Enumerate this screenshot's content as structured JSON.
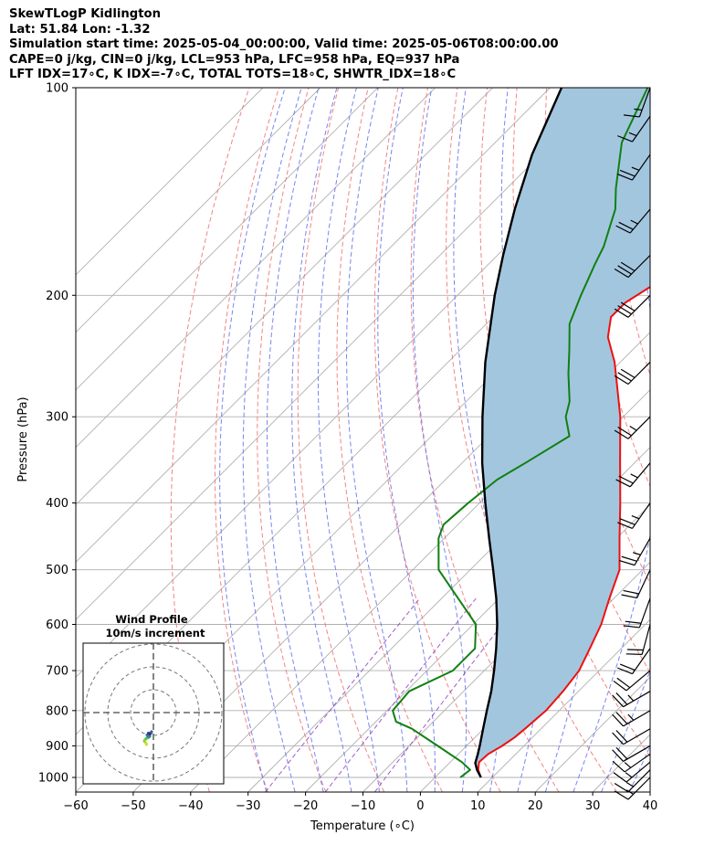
{
  "header": {
    "line1": "SkewTLogP Kidlington",
    "line2": "Lat: 51.84   Lon: -1.32",
    "line3": "Simulation start time: 2025-05-04_00:00:00, Valid time: 2025-05-06T08:00:00.00",
    "line4": "CAPE=0 j/kg, CIN=0 j/kg, LCL=953 hPa, LFC=958 hPa, EQ=937 hPa",
    "line5": "LFT IDX=17∘C, K IDX=-7∘C, TOTAL TOTS=18∘C, SHWTR_IDX=18∘C"
  },
  "colors": {
    "temperature": "#ee1111",
    "dewpoint": "#108010",
    "parcel": "#000000",
    "shade": "#a3c6df",
    "dry_adiabat": "#f07070",
    "moist_adiabat": "#6070f0",
    "mixing_ratio": "#9040c0",
    "isotherm": "#b0b0b0",
    "grid": "#b0b0b0"
  },
  "chart_data": [
    {
      "type": "line",
      "subtype": "skewt-logp",
      "xlabel": "Temperature (∘C)",
      "ylabel": "Pressure (hPa)",
      "xlim": [
        -60,
        40
      ],
      "ylim": [
        1050,
        100
      ],
      "x_ticks": [
        -60,
        -50,
        -40,
        -30,
        -20,
        -10,
        0,
        10,
        20,
        30,
        40
      ],
      "x_tick_labels": [
        "−60",
        "−50",
        "−40",
        "−30",
        "−20",
        "−10",
        "0",
        "10",
        "20",
        "30",
        "40"
      ],
      "y_ticks": [
        1000,
        900,
        800,
        700,
        600,
        500,
        400,
        300,
        200,
        100
      ],
      "y_tick_labels": [
        "1000",
        "900",
        "800",
        "700",
        "600",
        "500",
        "400",
        "300",
        "200",
        "100"
      ],
      "grid": true,
      "series": [
        {
          "name": "Temperature",
          "points": [
            [
              1000,
              8.0
            ],
            [
              975,
              6.2
            ],
            [
              950,
              5.0
            ],
            [
              925,
              5.2
            ],
            [
              900,
              6.2
            ],
            [
              875,
              6.9
            ],
            [
              850,
              7.2
            ],
            [
              800,
              7.7
            ],
            [
              750,
              7.3
            ],
            [
              700,
              6.5
            ],
            [
              650,
              4.5
            ],
            [
              600,
              2.3
            ],
            [
              550,
              -0.8
            ],
            [
              500,
              -4.0
            ],
            [
              450,
              -9.5
            ],
            [
              400,
              -15.5
            ],
            [
              350,
              -22.5
            ],
            [
              300,
              -30.5
            ],
            [
              275,
              -35.5
            ],
            [
              250,
              -41.0
            ],
            [
              230,
              -46.5
            ],
            [
              215,
              -49.5
            ],
            [
              205,
              -49.5
            ],
            [
              195,
              -48.0
            ],
            [
              185,
              -45.5
            ],
            [
              170,
              -43.0
            ],
            [
              160,
              -42.5
            ],
            [
              150,
              -44.5
            ],
            [
              140,
              -47.5
            ],
            [
              130,
              -51.0
            ],
            [
              120,
              -55.0
            ],
            [
              110,
              -59.5
            ],
            [
              100,
              -63.0
            ]
          ]
        },
        {
          "name": "Dewpoint",
          "points": [
            [
              1000,
              4.4
            ],
            [
              975,
              4.8
            ],
            [
              950,
              2.0
            ],
            [
              900,
              -5.0
            ],
            [
              850,
              -12.5
            ],
            [
              830,
              -16.5
            ],
            [
              800,
              -19.0
            ],
            [
              750,
              -19.5
            ],
            [
              700,
              -15.5
            ],
            [
              650,
              -15.5
            ],
            [
              600,
              -19.5
            ],
            [
              500,
              -35.5
            ],
            [
              450,
              -41.0
            ],
            [
              430,
              -42.5
            ],
            [
              400,
              -42.0
            ],
            [
              370,
              -41.0
            ],
            [
              350,
              -39.0
            ],
            [
              320,
              -36.0
            ],
            [
              300,
              -40.0
            ],
            [
              285,
              -42.0
            ],
            [
              260,
              -47.0
            ],
            [
              240,
              -51.0
            ],
            [
              220,
              -55.5
            ],
            [
              200,
              -58.5
            ],
            [
              180,
              -61.5
            ],
            [
              170,
              -63.0
            ],
            [
              150,
              -67.5
            ],
            [
              140,
              -71.0
            ],
            [
              120,
              -78.0
            ],
            [
              100,
              -83.0
            ]
          ]
        },
        {
          "name": "Parcel",
          "points": [
            [
              1000,
              8.0
            ],
            [
              975,
              6.0
            ],
            [
              953,
              4.5
            ],
            [
              925,
              3.4
            ],
            [
              900,
              2.3
            ],
            [
              850,
              -0.1
            ],
            [
              800,
              -2.6
            ],
            [
              750,
              -5.2
            ],
            [
              700,
              -8.3
            ],
            [
              650,
              -11.8
            ],
            [
              600,
              -15.8
            ],
            [
              550,
              -20.5
            ],
            [
              500,
              -26.0
            ],
            [
              450,
              -32.2
            ],
            [
              400,
              -39.0
            ],
            [
              350,
              -46.5
            ],
            [
              300,
              -54.5
            ],
            [
              250,
              -63.5
            ],
            [
              200,
              -73.5
            ],
            [
              175,
              -79.0
            ],
            [
              150,
              -85.0
            ],
            [
              125,
              -91.5
            ],
            [
              100,
              -98.0
            ]
          ]
        }
      ],
      "wind_barbs": [
        {
          "p": 1000,
          "dir": 225,
          "spd": 15
        },
        {
          "p": 975,
          "dir": 225,
          "spd": 15
        },
        {
          "p": 950,
          "dir": 230,
          "spd": 15
        },
        {
          "p": 925,
          "dir": 235,
          "spd": 15
        },
        {
          "p": 900,
          "dir": 240,
          "spd": 20
        },
        {
          "p": 850,
          "dir": 240,
          "spd": 20
        },
        {
          "p": 800,
          "dir": 240,
          "spd": 25
        },
        {
          "p": 750,
          "dir": 240,
          "spd": 25
        },
        {
          "p": 700,
          "dir": 230,
          "spd": 20
        },
        {
          "p": 650,
          "dir": 215,
          "spd": 20
        },
        {
          "p": 600,
          "dir": 195,
          "spd": 20
        },
        {
          "p": 550,
          "dir": 200,
          "spd": 20
        },
        {
          "p": 500,
          "dir": 205,
          "spd": 20
        },
        {
          "p": 450,
          "dir": 210,
          "spd": 25
        },
        {
          "p": 400,
          "dir": 215,
          "spd": 25
        },
        {
          "p": 350,
          "dir": 220,
          "spd": 25
        },
        {
          "p": 300,
          "dir": 225,
          "spd": 25
        },
        {
          "p": 250,
          "dir": 225,
          "spd": 30
        },
        {
          "p": 200,
          "dir": 225,
          "spd": 30
        },
        {
          "p": 175,
          "dir": 225,
          "spd": 30
        },
        {
          "p": 150,
          "dir": 220,
          "spd": 25
        },
        {
          "p": 125,
          "dir": 215,
          "spd": 25
        },
        {
          "p": 110,
          "dir": 215,
          "spd": 15
        },
        {
          "p": 100,
          "dir": 200,
          "spd": 15
        }
      ]
    },
    {
      "type": "scatter",
      "subtype": "hodograph",
      "title": "Wind Profile",
      "subtitle": "10m/s increment",
      "rings_ms": [
        10,
        20,
        30
      ],
      "points_uv": [
        [
          -3.0,
          -6.0
        ],
        [
          -3.2,
          -5.5
        ],
        [
          -3.6,
          -5.0
        ],
        [
          -4.0,
          -4.5
        ],
        [
          -3.8,
          -4.0
        ],
        [
          -3.2,
          -3.4
        ],
        [
          -2.4,
          -3.0
        ],
        [
          -2.0,
          -2.8
        ],
        [
          -2.6,
          -2.2
        ],
        [
          -1.6,
          -2.4
        ],
        [
          -2.8,
          -1.8
        ],
        [
          -1.2,
          -1.2
        ],
        [
          -0.8,
          -0.4
        ],
        [
          -1.6,
          -1.4
        ],
        [
          -2.2,
          -1.0
        ]
      ]
    }
  ]
}
